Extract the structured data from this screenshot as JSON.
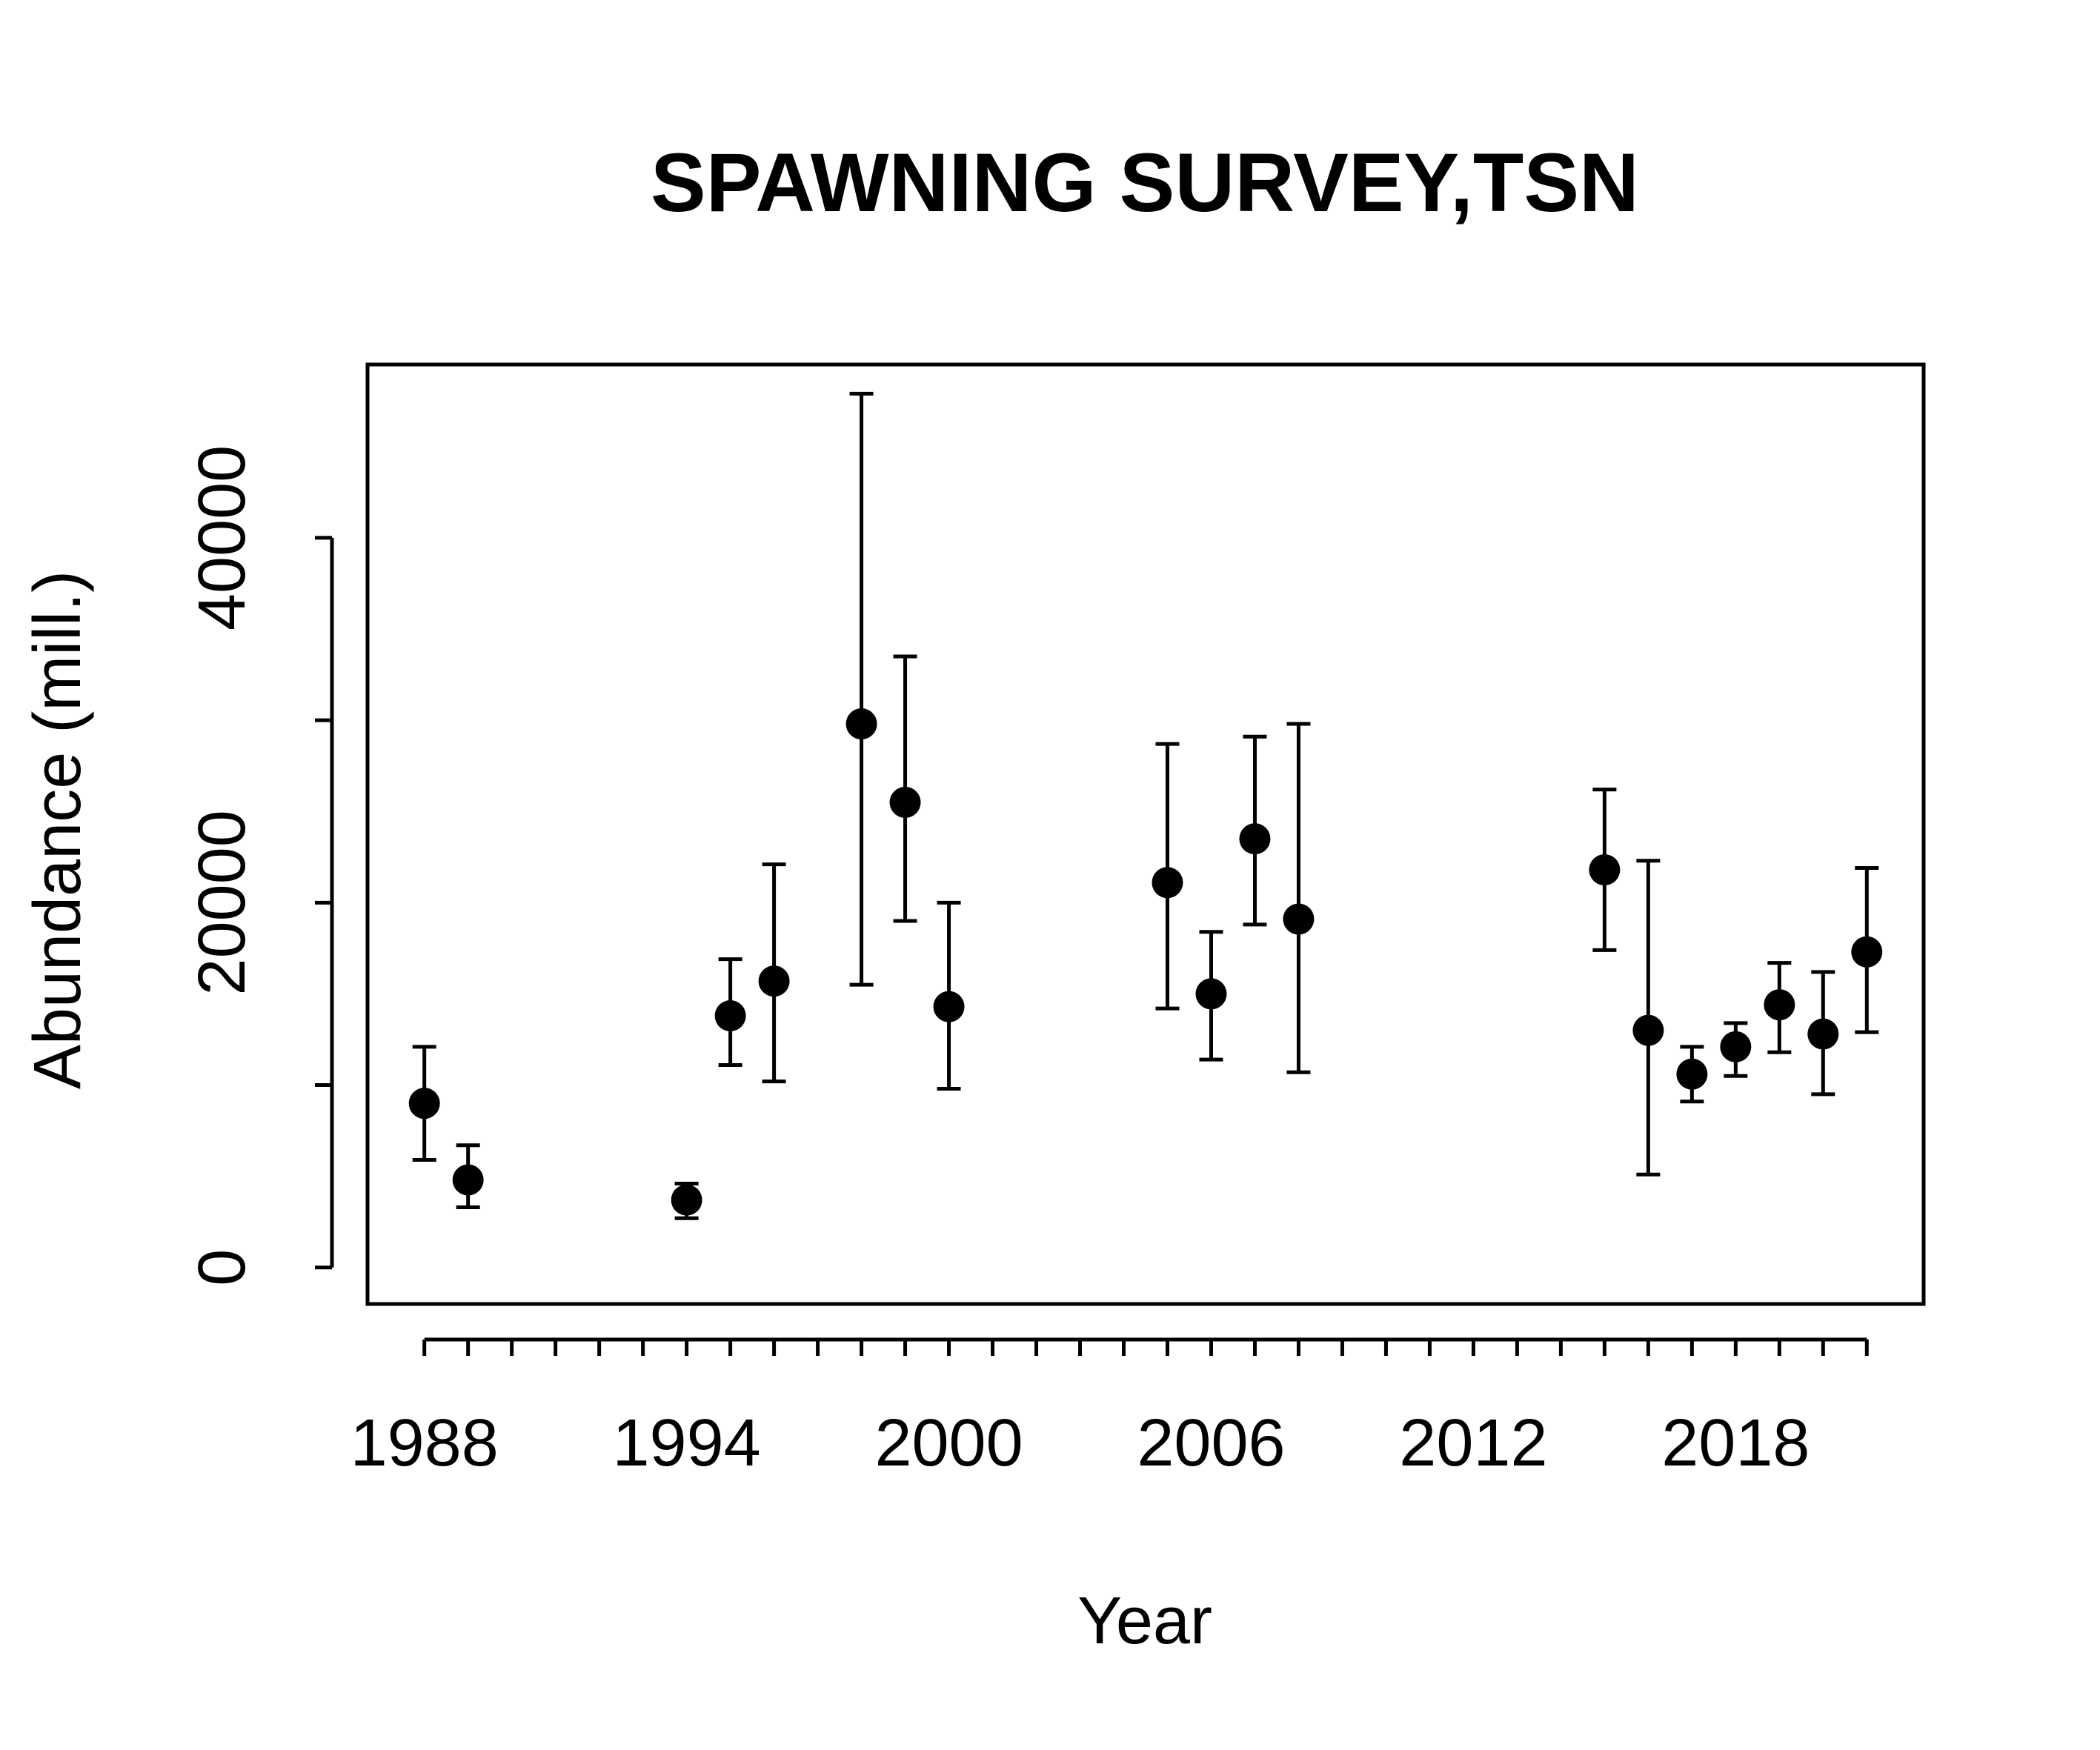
{
  "chart_data": {
    "type": "scatter",
    "title": "SPAWNING SURVEY,TSN",
    "xlabel": "Year",
    "ylabel": "Abundance (mill.)",
    "xlim": [
      1986.7,
      2022.3
    ],
    "ylim": [
      -2000,
      49500
    ],
    "x_ticks": [
      1988,
      1989,
      1990,
      1991,
      1992,
      1993,
      1994,
      1995,
      1996,
      1997,
      1998,
      1999,
      2000,
      2001,
      2002,
      2003,
      2004,
      2005,
      2006,
      2007,
      2008,
      2009,
      2010,
      2011,
      2012,
      2013,
      2014,
      2015,
      2016,
      2017,
      2018,
      2019,
      2020,
      2021
    ],
    "x_tick_labels": [
      {
        "value": 1988,
        "label": "1988"
      },
      {
        "value": 1994,
        "label": "1994"
      },
      {
        "value": 2000,
        "label": "2000"
      },
      {
        "value": 2006,
        "label": "2006"
      },
      {
        "value": 2012,
        "label": "2012"
      },
      {
        "value": 2018,
        "label": "2018"
      }
    ],
    "y_ticks": [
      {
        "value": 0,
        "label": "0"
      },
      {
        "value": 10000,
        "label": ""
      },
      {
        "value": 20000,
        "label": "20000"
      },
      {
        "value": 30000,
        "label": ""
      },
      {
        "value": 40000,
        "label": "40000"
      }
    ],
    "grid": false,
    "legend": "none",
    "series": [
      {
        "points": [
          {
            "x": 1988,
            "y": 9000,
            "lower": 5900,
            "upper": 12100
          },
          {
            "x": 1989,
            "y": 4800,
            "lower": 3300,
            "upper": 6700
          },
          {
            "x": 1994,
            "y": 3700,
            "lower": 2700,
            "upper": 4600
          },
          {
            "x": 1995,
            "y": 13800,
            "lower": 11100,
            "upper": 16900
          },
          {
            "x": 1996,
            "y": 15700,
            "lower": 10200,
            "upper": 22100
          },
          {
            "x": 1998,
            "y": 29800,
            "lower": 15500,
            "upper": 47900
          },
          {
            "x": 1999,
            "y": 25500,
            "lower": 19000,
            "upper": 33500
          },
          {
            "x": 2000,
            "y": 14300,
            "lower": 9800,
            "upper": 20000
          },
          {
            "x": 2005,
            "y": 21100,
            "lower": 14200,
            "upper": 28700
          },
          {
            "x": 2006,
            "y": 15000,
            "lower": 11400,
            "upper": 18400
          },
          {
            "x": 2007,
            "y": 23500,
            "lower": 18800,
            "upper": 29100
          },
          {
            "x": 2008,
            "y": 19100,
            "lower": 10700,
            "upper": 29800
          },
          {
            "x": 2015,
            "y": 21800,
            "lower": 17400,
            "upper": 26200
          },
          {
            "x": 2016,
            "y": 13000,
            "lower": 5100,
            "upper": 22300
          },
          {
            "x": 2017,
            "y": 10600,
            "lower": 9100,
            "upper": 12100
          },
          {
            "x": 2018,
            "y": 12100,
            "lower": 10500,
            "upper": 13400
          },
          {
            "x": 2019,
            "y": 14400,
            "lower": 11800,
            "upper": 16700
          },
          {
            "x": 2020,
            "y": 12800,
            "lower": 9500,
            "upper": 16200
          },
          {
            "x": 2021,
            "y": 17300,
            "lower": 12900,
            "upper": 21900
          }
        ]
      }
    ]
  }
}
